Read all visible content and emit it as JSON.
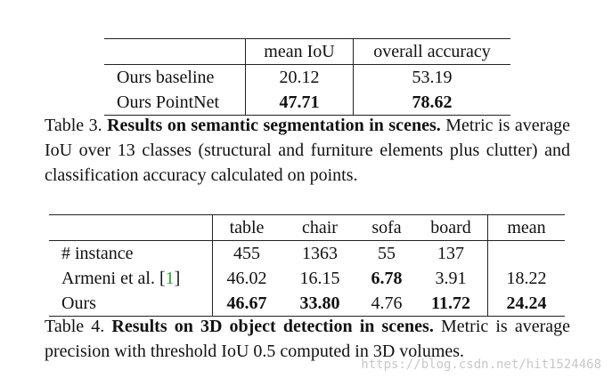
{
  "table3": {
    "headers": [
      "",
      "mean IoU",
      "overall accuracy"
    ],
    "rows": [
      {
        "label": "Ours baseline",
        "mean_iou": "20.12",
        "overall_accuracy": "53.19"
      },
      {
        "label": "Ours PointNet",
        "mean_iou": "47.71",
        "overall_accuracy": "78.62"
      }
    ],
    "caption_prefix": "Table 3.",
    "caption_bold": "Results on semantic segmentation in scenes.",
    "caption_rest": " Metric is average IoU over 13 classes (structural and furniture elements plus clutter) and classification accuracy calculated on points."
  },
  "table4": {
    "headers": [
      "",
      "table",
      "chair",
      "sofa",
      "board",
      "mean"
    ],
    "rows": [
      {
        "label": "# instance",
        "values": [
          "455",
          "1363",
          "55",
          "137",
          ""
        ]
      },
      {
        "label_text": "Armeni et al. [",
        "label_cite": "1",
        "label_end": "]",
        "values": [
          "46.02",
          "16.15",
          "6.78",
          "3.91",
          "18.22"
        ]
      },
      {
        "label": "Ours",
        "values": [
          "46.67",
          "33.80",
          "4.76",
          "11.72",
          "24.24"
        ]
      }
    ],
    "caption_prefix": "Table 4.",
    "caption_bold": "Results on 3D object detection in scenes.",
    "caption_rest": " Metric is average precision with threshold IoU 0.5 computed in 3D volumes."
  },
  "watermark": "https://blog.csdn.net/hit1524468"
}
